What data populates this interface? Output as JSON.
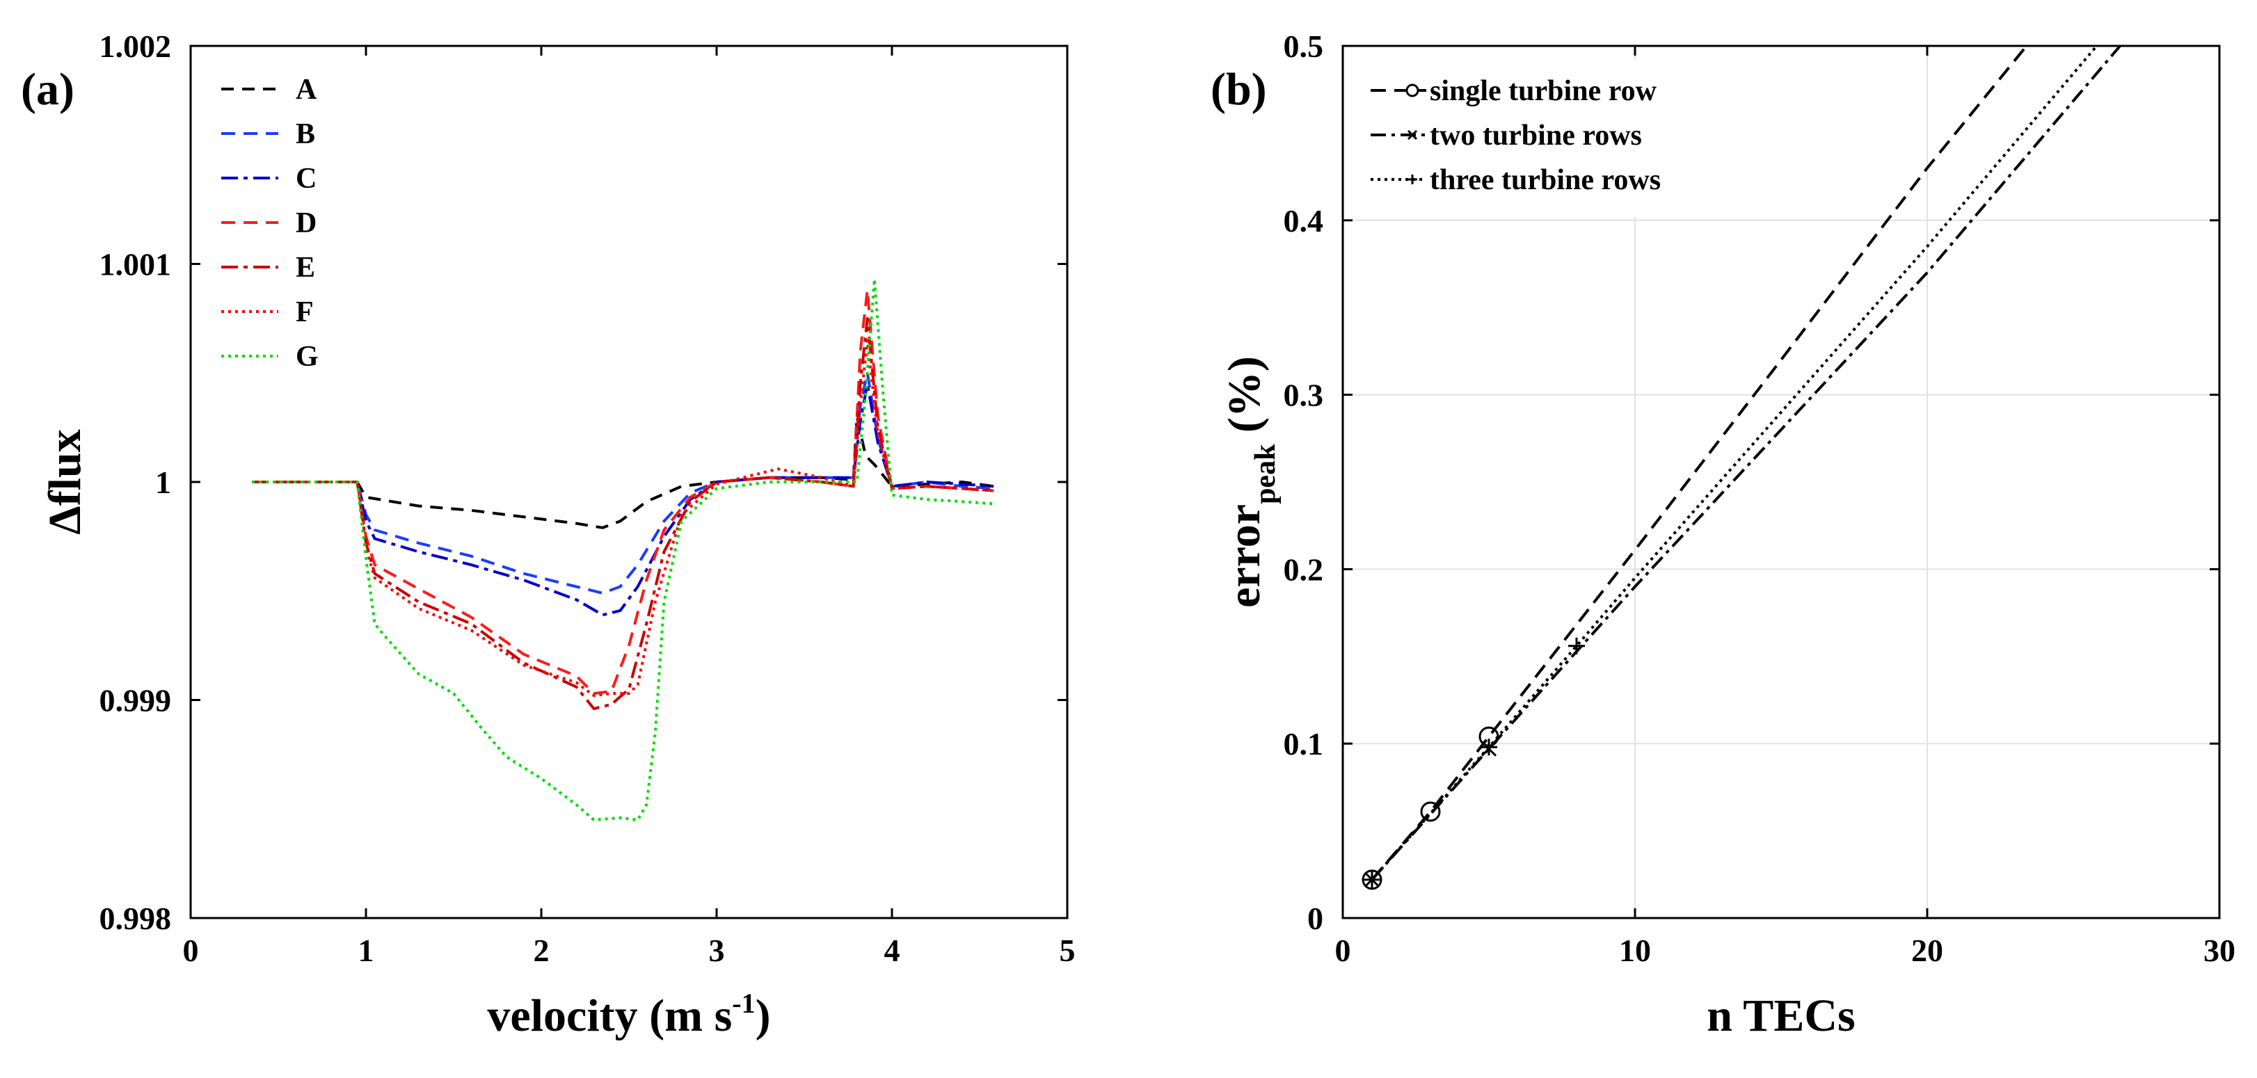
{
  "chart_data": [
    {
      "panel_label": "(a)",
      "type": "line",
      "xlabel": "velocity (m s",
      "xlabel_sup": "-1",
      "xlabel_end": ")",
      "ylabel": "Δflux",
      "xlim": [
        0,
        5
      ],
      "ylim": [
        0.998,
        1.002
      ],
      "xticks": [
        0,
        1,
        2,
        3,
        4,
        5
      ],
      "xtick_labels": [
        "0",
        "1",
        "2",
        "3",
        "4",
        "5"
      ],
      "yticks": [
        0.998,
        0.999,
        1.0,
        1.001,
        1.002
      ],
      "ytick_labels": [
        "0.998",
        "0.999",
        "1",
        "1.001",
        "1.002"
      ],
      "grid": false,
      "legend_position": "top-left",
      "series": [
        {
          "name": "A",
          "color": "#000000",
          "dash": "18,12",
          "x": [
            0.35,
            0.6,
            0.95,
            1.0,
            1.3,
            1.6,
            1.9,
            2.2,
            2.35,
            2.45,
            2.6,
            2.8,
            3.0,
            3.3,
            3.6,
            3.78,
            3.8,
            3.85,
            3.9,
            4.0,
            4.2,
            4.4,
            4.58
          ],
          "y": [
            1.0,
            1.0,
            1.0,
            0.99993,
            0.99989,
            0.99987,
            0.99984,
            0.99981,
            0.99979,
            0.99982,
            0.99991,
            0.99998,
            1.0,
            1.00002,
            1.00002,
            1.00001,
            1.0003,
            1.00012,
            1.00008,
            0.99998,
            0.99999,
            1.0,
            0.99998
          ]
        },
        {
          "name": "B",
          "color": "#1a3dff",
          "dash": "20,12",
          "x": [
            0.35,
            0.6,
            0.95,
            1.0,
            1.05,
            1.3,
            1.6,
            1.9,
            2.2,
            2.35,
            2.45,
            2.55,
            2.7,
            2.85,
            3.0,
            3.3,
            3.6,
            3.78,
            3.82,
            3.86,
            3.92,
            4.0,
            4.2,
            4.4,
            4.58
          ],
          "y": [
            1.0,
            1.0,
            1.0,
            0.99985,
            0.99978,
            0.99972,
            0.99966,
            0.99958,
            0.99952,
            0.99949,
            0.99952,
            0.99962,
            0.99982,
            0.99995,
            1.0,
            1.00002,
            1.00002,
            1.00002,
            1.00035,
            1.0005,
            1.0002,
            0.99998,
            1.0,
            0.99998,
            0.99997
          ]
        },
        {
          "name": "C",
          "color": "#0000cc",
          "dash": "24,8,6,8",
          "x": [
            0.35,
            0.6,
            0.95,
            1.0,
            1.05,
            1.3,
            1.6,
            1.9,
            2.2,
            2.35,
            2.45,
            2.55,
            2.7,
            2.85,
            3.0,
            3.3,
            3.6,
            3.78,
            3.82,
            3.86,
            3.92,
            4.0,
            4.2,
            4.4,
            4.58
          ],
          "y": [
            1.0,
            1.0,
            1.0,
            0.99982,
            0.99974,
            0.99968,
            0.99962,
            0.99955,
            0.99946,
            0.99939,
            0.99941,
            0.99952,
            0.99975,
            0.99992,
            1.0,
            1.00002,
            1.00002,
            1.00002,
            1.00028,
            1.00045,
            1.00018,
            0.99998,
            1.0,
            0.99999,
            0.99998
          ]
        },
        {
          "name": "D",
          "color": "#ff1a1a",
          "dash": "20,12",
          "x": [
            0.35,
            0.6,
            0.95,
            1.0,
            1.05,
            1.3,
            1.6,
            1.9,
            2.2,
            2.3,
            2.4,
            2.5,
            2.6,
            2.7,
            2.85,
            3.0,
            3.3,
            3.6,
            3.78,
            3.82,
            3.86,
            3.92,
            4.0,
            4.2,
            4.4,
            4.58
          ],
          "y": [
            1.0,
            1.0,
            1.0,
            0.99975,
            0.99962,
            0.99951,
            0.99938,
            0.99921,
            0.99911,
            0.99903,
            0.99904,
            0.99925,
            0.99955,
            0.99978,
            0.99993,
            1.0,
            1.00002,
            1.0,
            0.99998,
            1.0006,
            1.00088,
            1.0003,
            0.99997,
            0.99998,
            0.99997,
            0.99996
          ]
        },
        {
          "name": "E",
          "color": "#cc0000",
          "dash": "24,8,6,8",
          "x": [
            0.35,
            0.6,
            0.95,
            1.0,
            1.05,
            1.3,
            1.6,
            1.9,
            2.2,
            2.3,
            2.4,
            2.5,
            2.6,
            2.7,
            2.85,
            3.0,
            3.3,
            3.6,
            3.78,
            3.82,
            3.86,
            3.92,
            4.0,
            4.2,
            4.4,
            4.58
          ],
          "y": [
            1.0,
            1.0,
            1.0,
            0.99972,
            0.99958,
            0.99945,
            0.99935,
            0.99917,
            0.99906,
            0.99896,
            0.99898,
            0.99905,
            0.99935,
            0.99968,
            0.99991,
            1.0,
            1.00002,
            1.0,
            0.99998,
            1.00045,
            1.00075,
            1.00025,
            0.99997,
            0.99998,
            0.99997,
            0.99996
          ]
        },
        {
          "name": "F",
          "color": "#ff0000",
          "dash": "4,6",
          "x": [
            0.35,
            0.6,
            0.95,
            1.0,
            1.05,
            1.3,
            1.6,
            1.9,
            2.2,
            2.3,
            2.4,
            2.5,
            2.55,
            2.65,
            2.8,
            3.0,
            3.35,
            3.6,
            3.78,
            3.82,
            3.86,
            3.92,
            4.0,
            4.2,
            4.4,
            4.58
          ],
          "y": [
            1.0,
            1.0,
            1.0,
            0.9997,
            0.99956,
            0.99942,
            0.99932,
            0.99916,
            0.99908,
            0.99902,
            0.99903,
            0.99903,
            0.99907,
            0.99945,
            0.99985,
            0.99999,
            1.00006,
            1.00002,
            0.99998,
            1.00035,
            1.00065,
            1.00022,
            0.99997,
            0.99998,
            0.99997,
            0.99996
          ]
        },
        {
          "name": "G",
          "color": "#00dd00",
          "dash": "4,6",
          "x": [
            0.35,
            0.6,
            0.95,
            1.0,
            1.05,
            1.1,
            1.3,
            1.5,
            1.65,
            1.8,
            2.0,
            2.2,
            2.3,
            2.45,
            2.55,
            2.6,
            2.65,
            2.7,
            2.8,
            3.0,
            3.3,
            3.6,
            3.8,
            3.85,
            3.9,
            3.95,
            4.0,
            4.2,
            4.4,
            4.58
          ],
          "y": [
            1.0,
            1.0,
            1.0,
            0.99965,
            0.99935,
            0.9993,
            0.99912,
            0.99903,
            0.99888,
            0.99874,
            0.99864,
            0.99852,
            0.99845,
            0.99846,
            0.99845,
            0.99852,
            0.99885,
            0.99945,
            0.99982,
            0.99997,
            1.0,
            1.0,
            1.0,
            1.0004,
            1.00093,
            1.0004,
            0.99994,
            0.99992,
            0.99991,
            0.9999
          ]
        }
      ]
    },
    {
      "panel_label": "(b)",
      "type": "line",
      "xlabel": "n TECs",
      "ylabel": "error",
      "ylabel_sub": "peak",
      "ylabel_end": " (%)",
      "xlim": [
        0,
        30
      ],
      "ylim": [
        0,
        0.5
      ],
      "xticks": [
        0,
        10,
        20,
        30
      ],
      "xtick_labels": [
        "0",
        "10",
        "20",
        "30"
      ],
      "yticks": [
        0,
        0.1,
        0.2,
        0.3,
        0.4,
        0.5
      ],
      "ytick_labels": [
        "0",
        "0.1",
        "0.2",
        "0.3",
        "0.4",
        "0.5"
      ],
      "grid": true,
      "legend_position": "top-left",
      "series": [
        {
          "name": "single turbine row",
          "color": "#000000",
          "dash": "22,12",
          "marker": "circle",
          "x": [
            1,
            3,
            5,
            10,
            15,
            20,
            23.4
          ],
          "y": [
            0.022,
            0.061,
            0.104,
            0.211,
            0.32,
            0.43,
            0.5
          ],
          "marker_x": [
            1,
            3,
            5
          ]
        },
        {
          "name": "two turbine rows",
          "color": "#000000",
          "dash": "22,8,5,8",
          "marker": "x",
          "x": [
            1,
            5,
            10,
            15,
            20,
            26.6
          ],
          "y": [
            0.022,
            0.097,
            0.19,
            0.28,
            0.37,
            0.5
          ],
          "marker_x": [
            1,
            5
          ]
        },
        {
          "name": "three turbine rows",
          "color": "#000000",
          "dash": "4,6",
          "marker": "plus",
          "x": [
            1,
            5,
            8,
            10,
            15,
            20,
            25.8
          ],
          "y": [
            0.022,
            0.098,
            0.156,
            0.195,
            0.29,
            0.385,
            0.5
          ],
          "marker_x": [
            1,
            5,
            8
          ]
        }
      ]
    }
  ]
}
